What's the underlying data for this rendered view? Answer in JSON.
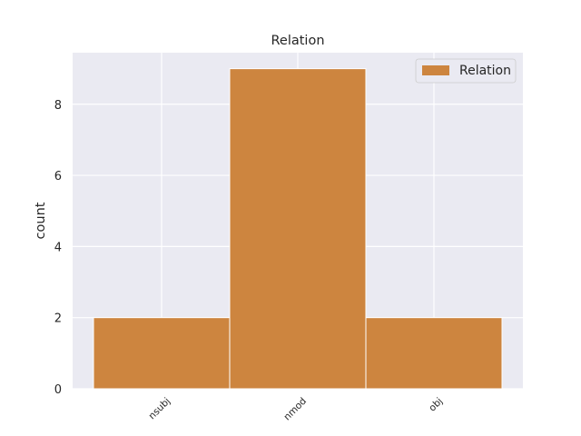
{
  "chart_data": {
    "type": "bar",
    "title": "Relation",
    "xlabel": "",
    "ylabel": "count",
    "categories": [
      "nsubj",
      "nmod",
      "obj"
    ],
    "series": [
      {
        "name": "Relation",
        "values": [
          2,
          9,
          2
        ]
      }
    ],
    "ylim": [
      0,
      9.45
    ],
    "yticks": [
      0,
      2,
      4,
      6,
      8
    ],
    "grid": true,
    "legend": "top-right",
    "colors": {
      "bar": "#cd853f",
      "background": "#eaeaf2",
      "grid": "#ffffff"
    }
  }
}
